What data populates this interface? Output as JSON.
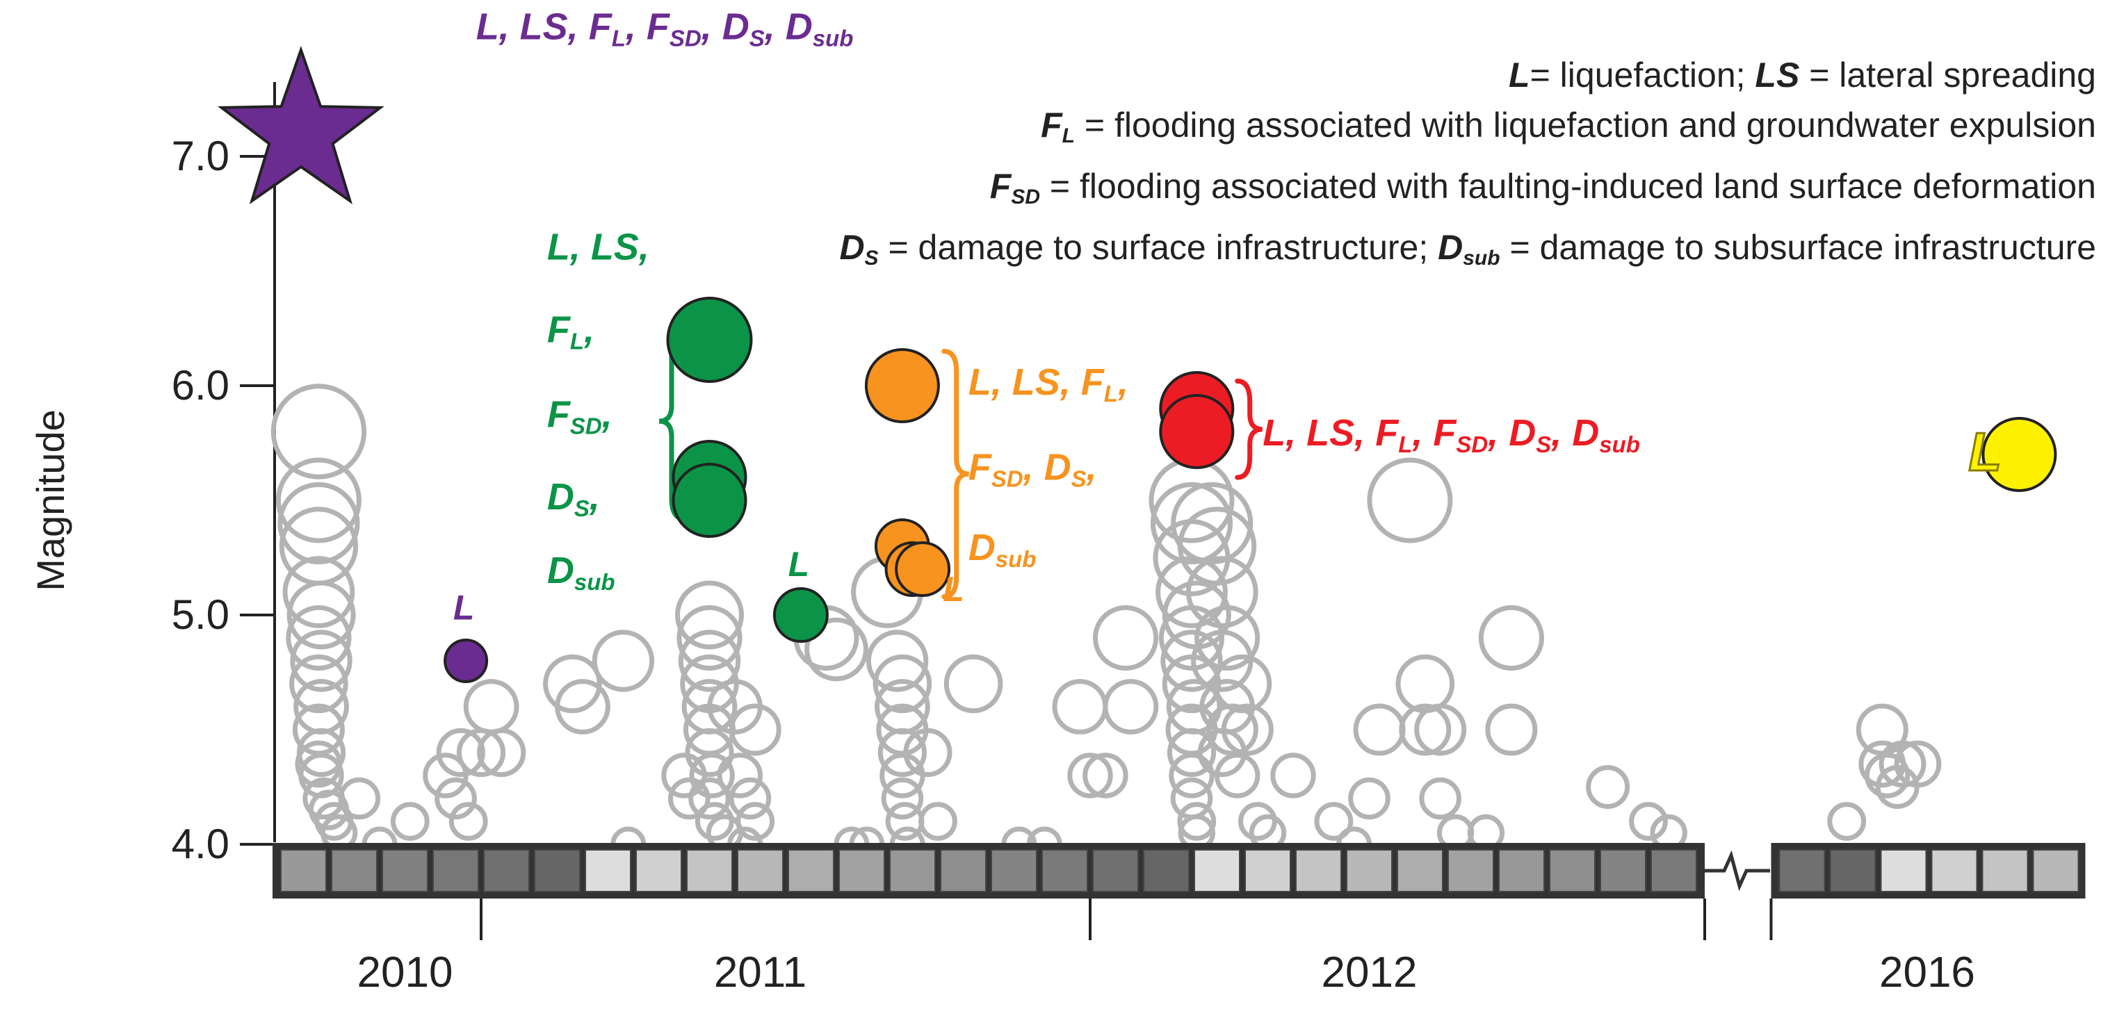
{
  "legend": {
    "line1": {
      "k1": "L",
      "t1": "= liquefaction;  ",
      "k2": "LS",
      "t2": " = lateral spreading"
    },
    "line2": {
      "k": "F",
      "sub": "L",
      "t": " = flooding associated with liquefaction and groundwater expulsion"
    },
    "line3": {
      "k": "F",
      "sub": "SD",
      "t": " = flooding associated with faulting-induced land surface deformation"
    },
    "line4": {
      "k1": "D",
      "s1": "S",
      "t1": " = damage to surface infrastructure;  ",
      "k2": "D",
      "s2": "sub",
      "t2": " = damage to subsurface infrastructure"
    }
  },
  "colors": {
    "aftershock": "#b3b3b3",
    "purple": "#6b2c91",
    "green": "#0b9447",
    "orange": "#f7931e",
    "red": "#ec1c24",
    "yellow": "#fff200"
  },
  "chart_data": {
    "type": "scatter",
    "ylabel": "Magnitude",
    "ylim": [
      4.0,
      7.3
    ],
    "yticks": [
      "7.0",
      "6.0",
      "5.0",
      "4.0"
    ],
    "x_unit": "month index from Sep 2010 (broken axis; 2016 segment follows the break)",
    "year_labels": [
      {
        "label": "2010",
        "x": 2.5
      },
      {
        "label": "2011",
        "x": 9.5
      },
      {
        "label": "2012",
        "x": 21.5
      },
      {
        "label": "2016",
        "x": 28.5
      }
    ],
    "year_dividers": [
      4.0,
      16.0,
      28.0
    ],
    "month_cell_shades": [
      "#999999",
      "#888888",
      "#808080",
      "#787878",
      "#707070",
      "#666666",
      "#dddddd",
      "#d0d0d0",
      "#c4c4c4",
      "#b8b8b8",
      "#adadad",
      "#a2a2a2",
      "#989898",
      "#8e8e8e",
      "#848484",
      "#7a7a7a",
      "#707070",
      "#666666",
      "#dddddd",
      "#d0d0d0",
      "#c4c4c4",
      "#b8b8b8",
      "#adadad",
      "#a2a2a2",
      "#989898",
      "#8e8e8e",
      "#848484",
      "#7a7a7a",
      "#707070",
      "#666666",
      "#dddddd",
      "#d0d0d0",
      "#c4c4c4",
      "#b8b8b8"
    ],
    "series": [
      {
        "role": "damaging",
        "points": [
          {
            "x": 0.45,
            "y": 7.1,
            "marker": "star",
            "color": "purple",
            "label": "L, LS, FL, FSD, DS, Dsub"
          },
          {
            "x": 3.7,
            "y": 4.8,
            "marker": "circle",
            "color": "purple",
            "label": "L"
          },
          {
            "x": 8.5,
            "y": 6.2,
            "marker": "circle",
            "color": "green"
          },
          {
            "x": 8.5,
            "y": 5.6,
            "marker": "circle",
            "color": "green"
          },
          {
            "x": 8.5,
            "y": 5.5,
            "marker": "circle",
            "color": "green"
          },
          {
            "x": 10.3,
            "y": 5.0,
            "marker": "circle",
            "color": "green",
            "label": "L"
          },
          {
            "x": 12.3,
            "y": 6.0,
            "marker": "circle",
            "color": "orange"
          },
          {
            "x": 12.3,
            "y": 5.3,
            "marker": "circle",
            "color": "orange"
          },
          {
            "x": 12.5,
            "y": 5.2,
            "marker": "circle",
            "color": "orange"
          },
          {
            "x": 12.7,
            "y": 5.2,
            "marker": "circle",
            "color": "orange",
            "label": "L"
          },
          {
            "x": 18.1,
            "y": 5.9,
            "marker": "circle",
            "color": "red"
          },
          {
            "x": 18.1,
            "y": 5.8,
            "marker": "circle",
            "color": "red"
          },
          {
            "x": 32.8,
            "y": 5.7,
            "marker": "circle",
            "color": "yellow",
            "label": "L"
          }
        ]
      },
      {
        "role": "aftershocks",
        "points": [
          {
            "x": 0.8,
            "y": 5.8
          },
          {
            "x": 0.8,
            "y": 5.5
          },
          {
            "x": 0.8,
            "y": 5.4
          },
          {
            "x": 0.8,
            "y": 5.3
          },
          {
            "x": 0.8,
            "y": 5.1
          },
          {
            "x": 0.85,
            "y": 5.0
          },
          {
            "x": 0.8,
            "y": 4.9
          },
          {
            "x": 0.85,
            "y": 4.8
          },
          {
            "x": 0.8,
            "y": 4.7
          },
          {
            "x": 0.85,
            "y": 4.6
          },
          {
            "x": 0.8,
            "y": 4.5
          },
          {
            "x": 0.85,
            "y": 4.4
          },
          {
            "x": 0.8,
            "y": 4.35
          },
          {
            "x": 0.85,
            "y": 4.3
          },
          {
            "x": 0.9,
            "y": 4.2
          },
          {
            "x": 1.0,
            "y": 4.15
          },
          {
            "x": 1.1,
            "y": 4.1
          },
          {
            "x": 1.2,
            "y": 4.05
          },
          {
            "x": 1.6,
            "y": 4.2
          },
          {
            "x": 2.0,
            "y": 4.0
          },
          {
            "x": 2.6,
            "y": 4.1
          },
          {
            "x": 3.3,
            "y": 4.3
          },
          {
            "x": 3.5,
            "y": 4.2
          },
          {
            "x": 3.6,
            "y": 4.4
          },
          {
            "x": 3.75,
            "y": 4.1
          },
          {
            "x": 4.0,
            "y": 4.4
          },
          {
            "x": 4.2,
            "y": 4.6
          },
          {
            "x": 4.4,
            "y": 4.4
          },
          {
            "x": 5.8,
            "y": 4.7
          },
          {
            "x": 6.0,
            "y": 4.6
          },
          {
            "x": 6.8,
            "y": 4.8
          },
          {
            "x": 6.9,
            "y": 4.0
          },
          {
            "x": 8.0,
            "y": 4.3
          },
          {
            "x": 8.1,
            "y": 4.2
          },
          {
            "x": 8.5,
            "y": 5.0
          },
          {
            "x": 8.5,
            "y": 4.9
          },
          {
            "x": 8.5,
            "y": 4.8
          },
          {
            "x": 8.5,
            "y": 4.7
          },
          {
            "x": 8.5,
            "y": 4.6
          },
          {
            "x": 8.5,
            "y": 4.5
          },
          {
            "x": 8.5,
            "y": 4.4
          },
          {
            "x": 8.55,
            "y": 4.3
          },
          {
            "x": 8.5,
            "y": 4.2
          },
          {
            "x": 8.6,
            "y": 4.1
          },
          {
            "x": 8.8,
            "y": 4.05
          },
          {
            "x": 9.0,
            "y": 4.6
          },
          {
            "x": 9.1,
            "y": 4.3
          },
          {
            "x": 9.3,
            "y": 4.2
          },
          {
            "x": 9.4,
            "y": 4.5
          },
          {
            "x": 9.2,
            "y": 4.0
          },
          {
            "x": 9.4,
            "y": 4.1
          },
          {
            "x": 10.8,
            "y": 4.9
          },
          {
            "x": 11.0,
            "y": 4.85
          },
          {
            "x": 11.3,
            "y": 4.0
          },
          {
            "x": 11.6,
            "y": 4.0
          },
          {
            "x": 12.0,
            "y": 5.1
          },
          {
            "x": 12.2,
            "y": 4.8
          },
          {
            "x": 12.3,
            "y": 4.7
          },
          {
            "x": 12.3,
            "y": 4.6
          },
          {
            "x": 12.3,
            "y": 4.5
          },
          {
            "x": 12.3,
            "y": 4.4
          },
          {
            "x": 12.3,
            "y": 4.3
          },
          {
            "x": 12.3,
            "y": 4.2
          },
          {
            "x": 12.35,
            "y": 4.1
          },
          {
            "x": 12.4,
            "y": 4.0
          },
          {
            "x": 12.8,
            "y": 4.4
          },
          {
            "x": 13.0,
            "y": 4.1
          },
          {
            "x": 13.7,
            "y": 4.7
          },
          {
            "x": 14.6,
            "y": 4.0
          },
          {
            "x": 15.1,
            "y": 4.0
          },
          {
            "x": 15.8,
            "y": 4.6
          },
          {
            "x": 16.0,
            "y": 4.3
          },
          {
            "x": 16.3,
            "y": 4.3
          },
          {
            "x": 16.7,
            "y": 4.9
          },
          {
            "x": 16.8,
            "y": 4.6
          },
          {
            "x": 18.0,
            "y": 5.5
          },
          {
            "x": 18.0,
            "y": 5.4
          },
          {
            "x": 18.0,
            "y": 5.25
          },
          {
            "x": 18.0,
            "y": 5.1
          },
          {
            "x": 18.1,
            "y": 5.0
          },
          {
            "x": 18.0,
            "y": 4.9
          },
          {
            "x": 18.0,
            "y": 4.8
          },
          {
            "x": 18.0,
            "y": 4.7
          },
          {
            "x": 18.05,
            "y": 4.6
          },
          {
            "x": 18.0,
            "y": 4.5
          },
          {
            "x": 18.0,
            "y": 4.4
          },
          {
            "x": 18.0,
            "y": 4.3
          },
          {
            "x": 18.0,
            "y": 4.2
          },
          {
            "x": 18.1,
            "y": 4.1
          },
          {
            "x": 18.1,
            "y": 4.05
          },
          {
            "x": 18.4,
            "y": 5.4
          },
          {
            "x": 18.5,
            "y": 5.3
          },
          {
            "x": 18.6,
            "y": 5.1
          },
          {
            "x": 18.7,
            "y": 4.9
          },
          {
            "x": 18.6,
            "y": 4.8
          },
          {
            "x": 18.7,
            "y": 4.6
          },
          {
            "x": 18.8,
            "y": 4.5
          },
          {
            "x": 18.6,
            "y": 4.4
          },
          {
            "x": 18.9,
            "y": 4.3
          },
          {
            "x": 19.0,
            "y": 4.7
          },
          {
            "x": 19.1,
            "y": 4.5
          },
          {
            "x": 19.3,
            "y": 4.1
          },
          {
            "x": 19.5,
            "y": 4.05
          },
          {
            "x": 20.0,
            "y": 4.3
          },
          {
            "x": 20.8,
            "y": 4.1
          },
          {
            "x": 21.2,
            "y": 4.0
          },
          {
            "x": 21.5,
            "y": 4.2
          },
          {
            "x": 21.7,
            "y": 4.5
          },
          {
            "x": 22.6,
            "y": 4.7
          },
          {
            "x": 22.6,
            "y": 4.5
          },
          {
            "x": 22.9,
            "y": 4.5
          },
          {
            "x": 22.9,
            "y": 4.2
          },
          {
            "x": 23.2,
            "y": 4.05
          },
          {
            "x": 23.8,
            "y": 4.05
          },
          {
            "x": 22.3,
            "y": 5.5
          },
          {
            "x": 24.3,
            "y": 4.9
          },
          {
            "x": 24.3,
            "y": 4.5
          },
          {
            "x": 26.2,
            "y": 4.25
          },
          {
            "x": 27.0,
            "y": 4.1
          },
          {
            "x": 27.4,
            "y": 4.05
          },
          {
            "x": 29.4,
            "y": 4.1
          },
          {
            "x": 30.1,
            "y": 4.5
          },
          {
            "x": 30.1,
            "y": 4.35
          },
          {
            "x": 30.2,
            "y": 4.3
          },
          {
            "x": 30.4,
            "y": 4.25
          },
          {
            "x": 30.5,
            "y": 4.35
          },
          {
            "x": 30.8,
            "y": 4.35
          }
        ]
      }
    ],
    "annotations": [
      {
        "id": "star-label",
        "x": 3.9,
        "y": 7.51,
        "color": "purple",
        "size": 54,
        "parts": [
          [
            "L, LS, F",
            ""
          ],
          [
            "L",
            "s"
          ],
          [
            ", F",
            ""
          ],
          [
            "SD",
            "s"
          ],
          [
            ", D",
            ""
          ],
          [
            "S",
            "s"
          ],
          [
            ", D",
            ""
          ],
          [
            "sub",
            "s"
          ]
        ]
      },
      {
        "id": "purple-small-L",
        "x": 3.45,
        "y": 4.98,
        "color": "purple",
        "size": 50,
        "parts": [
          [
            "L",
            ""
          ]
        ]
      },
      {
        "id": "green-1",
        "x": 5.3,
        "y": 6.55,
        "color": "green",
        "size": 54,
        "parts": [
          [
            "L, LS,",
            ""
          ]
        ]
      },
      {
        "id": "green-2",
        "x": 5.3,
        "y": 6.19,
        "color": "green",
        "size": 54,
        "parts": [
          [
            "F",
            ""
          ],
          [
            "L",
            "s"
          ],
          [
            ",",
            ""
          ]
        ]
      },
      {
        "id": "green-3",
        "x": 5.3,
        "y": 5.82,
        "color": "green",
        "size": 54,
        "parts": [
          [
            "F",
            ""
          ],
          [
            "SD",
            "s"
          ],
          [
            ",",
            ""
          ]
        ]
      },
      {
        "id": "green-4",
        "x": 5.3,
        "y": 5.46,
        "color": "green",
        "size": 54,
        "parts": [
          [
            "D",
            ""
          ],
          [
            "S",
            "s"
          ],
          [
            ",",
            ""
          ]
        ]
      },
      {
        "id": "green-5",
        "x": 5.3,
        "y": 5.14,
        "color": "green",
        "size": 54,
        "parts": [
          [
            "D",
            ""
          ],
          [
            "sub",
            "s"
          ]
        ]
      },
      {
        "id": "green-small-L",
        "x": 10.05,
        "y": 5.17,
        "color": "green",
        "size": 50,
        "parts": [
          [
            "L",
            ""
          ]
        ]
      },
      {
        "id": "orange-1",
        "x": 13.6,
        "y": 5.96,
        "color": "orange",
        "size": 54,
        "parts": [
          [
            "L, LS, F",
            ""
          ],
          [
            "L",
            "s"
          ],
          [
            ",",
            ""
          ]
        ]
      },
      {
        "id": "orange-2",
        "x": 13.6,
        "y": 5.59,
        "color": "orange",
        "size": 54,
        "parts": [
          [
            "F",
            ""
          ],
          [
            "SD",
            "s"
          ],
          [
            ", D",
            ""
          ],
          [
            "S",
            "s"
          ],
          [
            ",",
            ""
          ]
        ]
      },
      {
        "id": "orange-3",
        "x": 13.6,
        "y": 5.24,
        "color": "orange",
        "size": 54,
        "parts": [
          [
            "D",
            ""
          ],
          [
            "sub",
            "s"
          ]
        ]
      },
      {
        "id": "orange-small-L",
        "x": 13.1,
        "y": 5.06,
        "color": "orange",
        "size": 50,
        "parts": [
          [
            "L",
            ""
          ]
        ]
      },
      {
        "id": "red-label",
        "x": 19.4,
        "y": 5.74,
        "color": "red",
        "size": 54,
        "parts": [
          [
            "L, LS, F",
            ""
          ],
          [
            "L",
            "s"
          ],
          [
            ", F",
            ""
          ],
          [
            "SD",
            "s"
          ],
          [
            ", D",
            ""
          ],
          [
            "S",
            "s"
          ],
          [
            ", D",
            ""
          ],
          [
            "sub",
            "s"
          ]
        ]
      },
      {
        "id": "yellow-L",
        "x": 31.8,
        "y": 5.63,
        "color": "yellow",
        "size": 78,
        "parts": [
          [
            "L",
            ""
          ]
        ]
      }
    ],
    "brackets": [
      {
        "color": "green",
        "x": 8.0,
        "y1": 6.27,
        "y2": 5.42,
        "dir": "left"
      },
      {
        "color": "orange",
        "x": 13.12,
        "y1": 6.15,
        "y2": 5.08,
        "dir": "right"
      },
      {
        "color": "red",
        "x": 18.9,
        "y1": 6.02,
        "y2": 5.6,
        "dir": "right"
      }
    ]
  }
}
